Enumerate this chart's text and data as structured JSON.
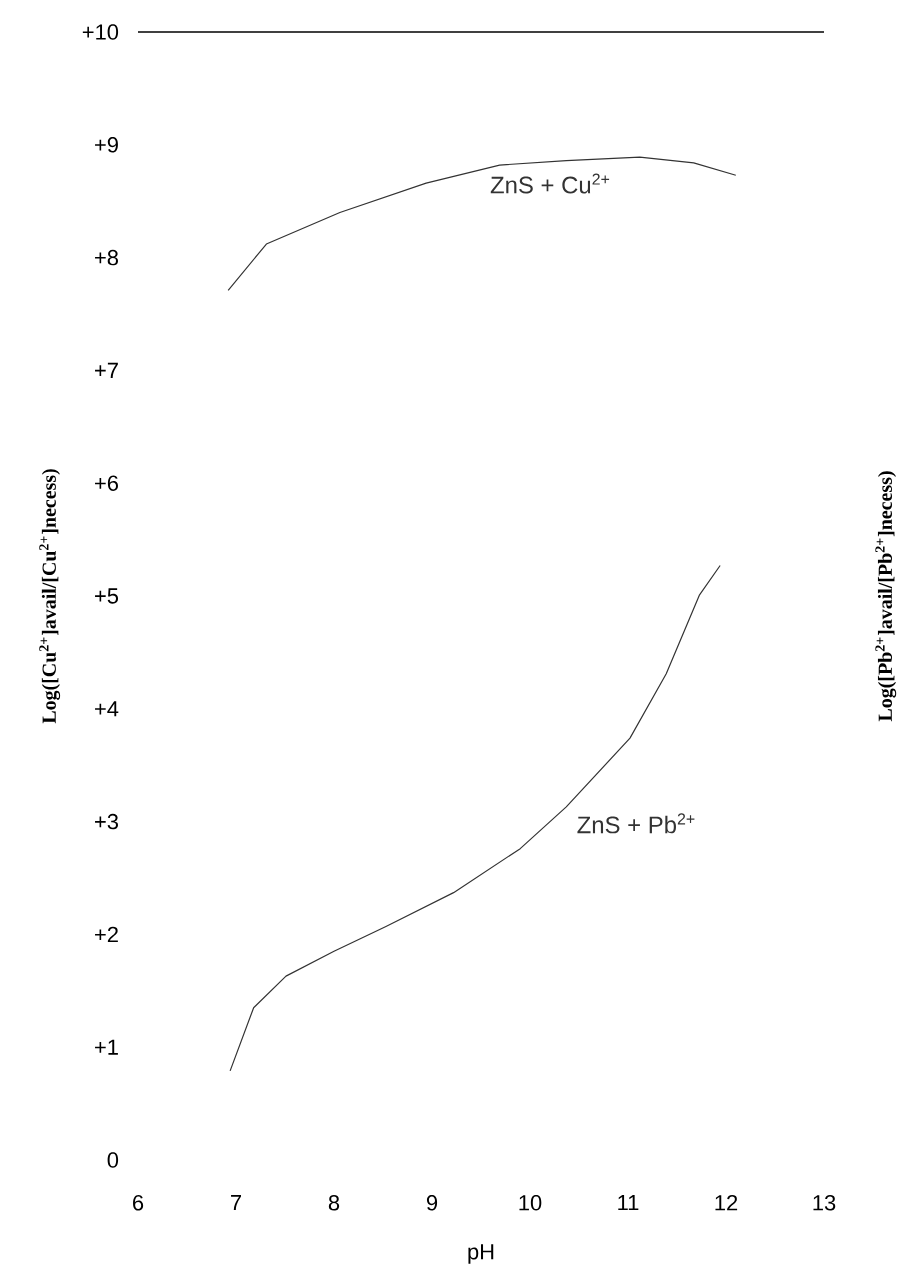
{
  "chart_data": {
    "type": "line",
    "xlabel": "pH",
    "ylabel": "Log([Cu$^{2+}$]avail/[Cu$^{2+}$]necess)",
    "y2label": "Log([Pb$^{2+}$]avail/[Pb$^{2+}$]necess)",
    "xlim": [
      6,
      13
    ],
    "ylim": [
      0,
      10
    ],
    "xticks": [
      6,
      7,
      8,
      9,
      10,
      11,
      12,
      13
    ],
    "yticks": [
      {
        "value": 0,
        "label": "0"
      },
      {
        "value": 1,
        "label": "+1"
      },
      {
        "value": 2,
        "label": "+2"
      },
      {
        "value": 3,
        "label": "+3"
      },
      {
        "value": 4,
        "label": "+4"
      },
      {
        "value": 5,
        "label": "+5"
      },
      {
        "value": 6,
        "label": "+6"
      },
      {
        "value": 7,
        "label": "+7"
      },
      {
        "value": 8,
        "label": "+8"
      },
      {
        "value": 9,
        "label": "+9"
      },
      {
        "value": 10,
        "label": "+10"
      }
    ],
    "ref_lines": [
      {
        "axis": "y",
        "value": 10,
        "color": "#000000"
      }
    ],
    "series": [
      {
        "name": "ZnS + Cu$^{2+}$",
        "color": "#333333",
        "x": [
          6.92,
          7.31,
          8.06,
          8.94,
          9.69,
          10.37,
          11.12,
          11.67,
          12.1
        ],
        "values": [
          7.71,
          8.12,
          8.4,
          8.66,
          8.82,
          8.86,
          8.89,
          8.84,
          8.73
        ]
      },
      {
        "name": "ZnS + Pb$^{2+}$",
        "color": "#333333",
        "x": [
          6.94,
          7.18,
          7.51,
          8.0,
          8.53,
          9.22,
          9.9,
          10.37,
          11.02,
          11.39,
          11.73,
          11.94
        ],
        "values": [
          0.79,
          1.35,
          1.63,
          1.85,
          2.07,
          2.37,
          2.76,
          3.13,
          3.74,
          4.31,
          5.01,
          5.27
        ]
      }
    ]
  }
}
